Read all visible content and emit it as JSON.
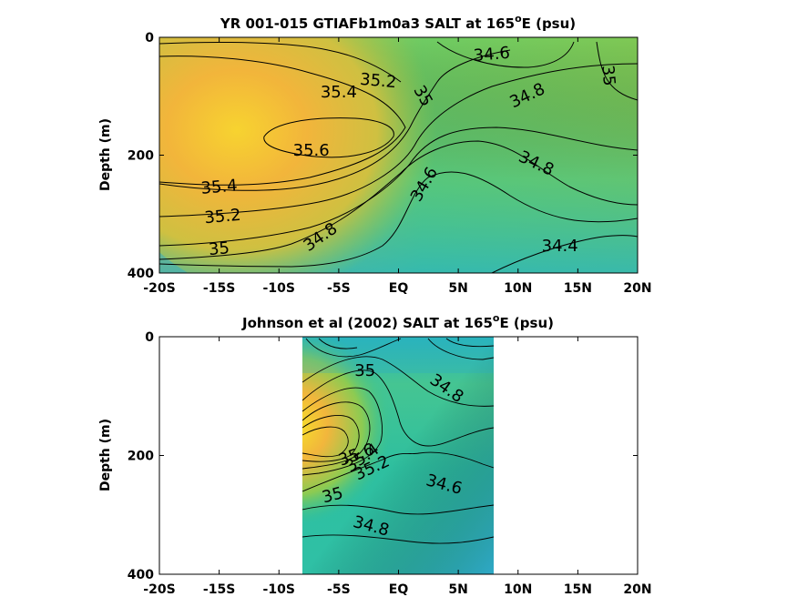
{
  "chart_data": [
    {
      "type": "heatmap",
      "title_prefix": "YR 001-015 GTIAFb1m0a3 SALT at 165",
      "title_sup": "o",
      "title_suffix": "E (psu)",
      "xlabel": "",
      "ylabel": "Depth (m)",
      "xlim": [
        -20,
        20
      ],
      "ylim": [
        0,
        400
      ],
      "y_reversed": true,
      "x_ticks": [
        -20,
        -15,
        -10,
        -5,
        0,
        5,
        10,
        15,
        20
      ],
      "x_tick_labels": [
        "-20S",
        "-15S",
        "-10S",
        "-5S",
        "EQ",
        "5N",
        "10N",
        "15N",
        "20N"
      ],
      "y_ticks": [
        0,
        200,
        400
      ],
      "y_tick_labels": [
        "0",
        "200",
        "400"
      ],
      "data_extent_x": [
        -20,
        20
      ],
      "contour_labels": [
        {
          "text": "34.6",
          "x": 7.8,
          "y": 30,
          "rot": -5
        },
        {
          "text": "35",
          "x": 17.5,
          "y": 65,
          "rot": 85
        },
        {
          "text": "35.2",
          "x": -1.7,
          "y": 75,
          "rot": 5
        },
        {
          "text": "35",
          "x": 2.0,
          "y": 100,
          "rot": 60
        },
        {
          "text": "35.4",
          "x": -5.0,
          "y": 94,
          "rot": 0
        },
        {
          "text": "34.8",
          "x": 10.8,
          "y": 100,
          "rot": -25
        },
        {
          "text": "35.6",
          "x": -7.3,
          "y": 193,
          "rot": 0
        },
        {
          "text": "34.8",
          "x": 11.5,
          "y": 215,
          "rot": 25
        },
        {
          "text": "35.4",
          "x": -15.0,
          "y": 255,
          "rot": -5
        },
        {
          "text": "34.6",
          "x": 2.2,
          "y": 250,
          "rot": -60
        },
        {
          "text": "35.2",
          "x": -14.7,
          "y": 305,
          "rot": -5
        },
        {
          "text": "34.8",
          "x": -6.5,
          "y": 340,
          "rot": -35
        },
        {
          "text": "35",
          "x": -15.0,
          "y": 360,
          "rot": -5
        },
        {
          "text": "34.4",
          "x": 13.5,
          "y": 355,
          "rot": 0
        }
      ]
    },
    {
      "type": "heatmap",
      "title_prefix": "Johnson et al (2002) SALT at 165",
      "title_sup": "o",
      "title_suffix": "E (psu)",
      "xlabel": "",
      "ylabel": "Depth (m)",
      "xlim": [
        -20,
        20
      ],
      "ylim": [
        0,
        400
      ],
      "y_reversed": true,
      "x_ticks": [
        -20,
        -15,
        -10,
        -5,
        0,
        5,
        10,
        15,
        20
      ],
      "x_tick_labels": [
        "-20S",
        "-15S",
        "-10S",
        "-5S",
        "EQ",
        "5N",
        "10N",
        "15N",
        "20N"
      ],
      "y_ticks": [
        0,
        200,
        400
      ],
      "y_tick_labels": [
        "0",
        "200",
        "400"
      ],
      "data_extent_x": [
        -8,
        8
      ],
      "contour_labels": [
        {
          "text": "35",
          "x": -2.8,
          "y": 58,
          "rot": 0
        },
        {
          "text": "34.8",
          "x": 4.0,
          "y": 88,
          "rot": 35
        },
        {
          "text": "35.6",
          "x": -3.5,
          "y": 200,
          "rot": -20
        },
        {
          "text": "35.4",
          "x": -3.0,
          "y": 205,
          "rot": -35
        },
        {
          "text": "35.2",
          "x": -2.2,
          "y": 222,
          "rot": -25
        },
        {
          "text": "34.6",
          "x": 3.8,
          "y": 250,
          "rot": 15
        },
        {
          "text": "35",
          "x": -5.5,
          "y": 268,
          "rot": -15
        },
        {
          "text": "34.8",
          "x": -2.3,
          "y": 320,
          "rot": 15
        }
      ]
    }
  ]
}
